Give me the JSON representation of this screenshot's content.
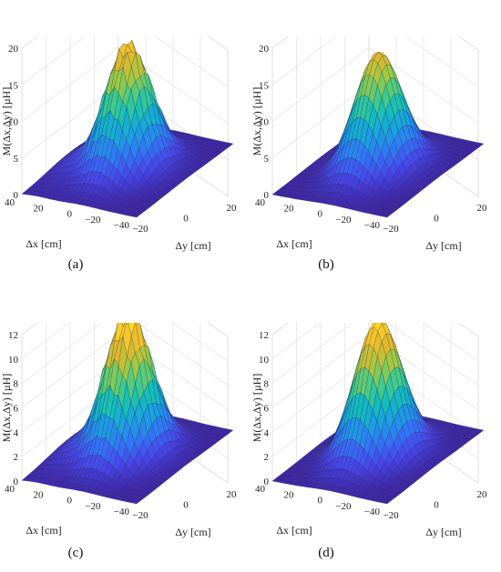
{
  "chart_data": [
    {
      "type": "surface",
      "caption": "(a)",
      "zlabel": "M(Δx,Δy) [µH]",
      "xlabel": "Δx [cm]",
      "ylabel": "Δy [cm]",
      "x_ticks": [
        "40",
        "20",
        "0",
        "−20",
        "−40"
      ],
      "y_ticks": [
        "−20",
        "0",
        "20"
      ],
      "z_ticks": [
        "0",
        "5",
        "10",
        "15",
        "20"
      ],
      "xlim": [
        -40,
        40
      ],
      "ylim": [
        -20,
        20
      ],
      "zlim": [
        0,
        20
      ],
      "peak": 17,
      "peak_at": {
        "x": 0,
        "y": 0
      },
      "surface": "measured"
    },
    {
      "type": "surface",
      "caption": "(b)",
      "zlabel": "M(Δx,Δy) [µH]",
      "xlabel": "Δx [cm]",
      "ylabel": "Δy [cm]",
      "x_ticks": [
        "40",
        "20",
        "0",
        "−20",
        "−40"
      ],
      "y_ticks": [
        "−20",
        "0",
        "20"
      ],
      "z_ticks": [
        "0",
        "5",
        "10",
        "15",
        "20"
      ],
      "xlim": [
        -40,
        40
      ],
      "ylim": [
        -20,
        20
      ],
      "zlim": [
        0,
        20
      ],
      "peak": 16,
      "peak_at": {
        "x": 0,
        "y": 0
      },
      "surface": "smooth"
    },
    {
      "type": "surface",
      "caption": "(c)",
      "zlabel": "M(Δx,Δy) [µH]",
      "xlabel": "Δx [cm]",
      "ylabel": "Δy [cm]",
      "x_ticks": [
        "40",
        "20",
        "0",
        "−20",
        "−40"
      ],
      "y_ticks": [
        "−20",
        "0",
        "20"
      ],
      "z_ticks": [
        "0",
        "2",
        "4",
        "6",
        "8",
        "10",
        "12"
      ],
      "xlim": [
        -40,
        40
      ],
      "ylim": [
        -20,
        20
      ],
      "zlim": [
        0,
        12
      ],
      "peak": 11.8,
      "peak_at": {
        "x": 0,
        "y": 0
      },
      "surface": "measured"
    },
    {
      "type": "surface",
      "caption": "(d)",
      "zlabel": "M(Δx,Δy) [µH]",
      "xlabel": "Δx [cm]",
      "ylabel": "Δy [cm]",
      "x_ticks": [
        "40",
        "20",
        "0",
        "−20",
        "−40"
      ],
      "y_ticks": [
        "−20",
        "0",
        "20"
      ],
      "z_ticks": [
        "0",
        "2",
        "4",
        "6",
        "8",
        "10",
        "12"
      ],
      "xlim": [
        -40,
        40
      ],
      "ylim": [
        -20,
        20
      ],
      "zlim": [
        0,
        12
      ],
      "peak": 11.2,
      "peak_at": {
        "x": 0,
        "y": 0
      },
      "surface": "smooth"
    }
  ],
  "colormap": [
    "#3e26a8",
    "#4746eb",
    "#3176f8",
    "#1ba0e3",
    "#14bdbd",
    "#48cb86",
    "#a1c844",
    "#e2b72f",
    "#fcce2e",
    "#f9fb15"
  ]
}
